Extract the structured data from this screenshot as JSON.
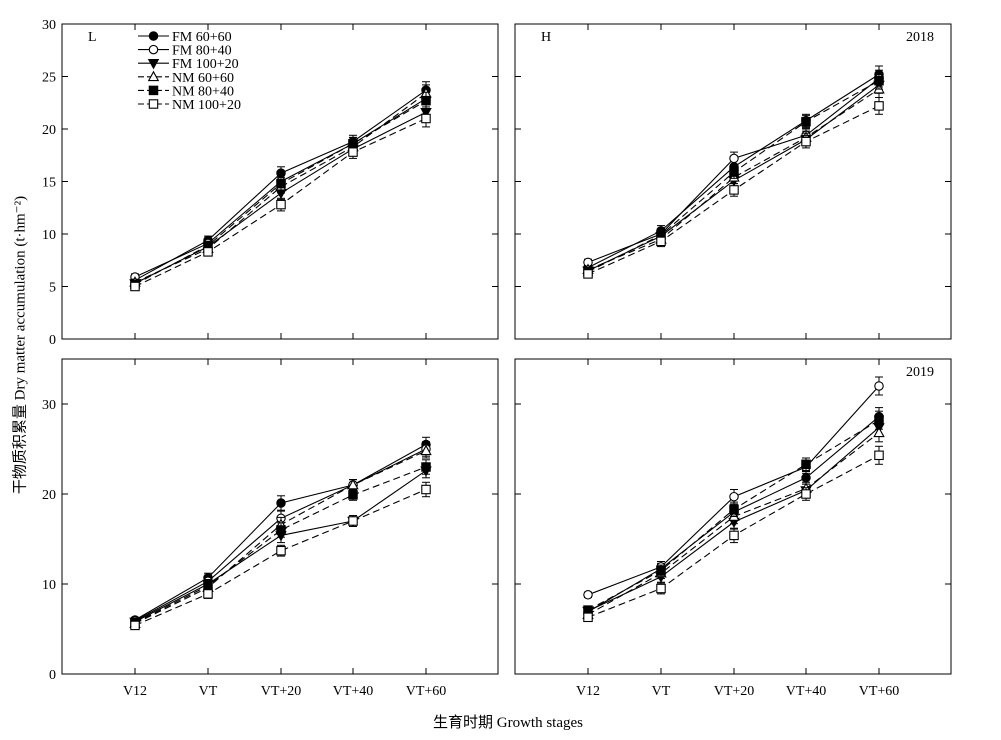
{
  "axis_titles": {
    "y": "干物质积累量 Dry matter accumulation (t·hm⁻²)",
    "x": "生育时期 Growth stages"
  },
  "chart_data": [
    {
      "type": "line",
      "panel_label": "L",
      "year_label": "",
      "categories": [
        "V12",
        "VT",
        "VT+20",
        "VT+40",
        "VT+60"
      ],
      "ylim": [
        0,
        30
      ],
      "yticks": [
        0,
        5,
        10,
        15,
        20,
        25,
        30
      ],
      "show_x_ticklabels": false,
      "legend_position": "top-left",
      "series": [
        {
          "name": "FM 60+60",
          "values": [
            5.6,
            9.4,
            15.8,
            18.8,
            23.7
          ],
          "error": [
            0.3,
            0.4,
            0.6,
            0.6,
            0.8
          ],
          "marker": "circle-filled",
          "dash": "solid"
        },
        {
          "name": "FM 80+40",
          "values": [
            5.9,
            9.1,
            15.0,
            18.6,
            22.9
          ],
          "error": [
            0.3,
            0.4,
            0.6,
            0.6,
            0.8
          ],
          "marker": "circle-open",
          "dash": "solid"
        },
        {
          "name": "FM 100+20",
          "values": [
            5.3,
            8.8,
            13.9,
            18.1,
            21.6
          ],
          "error": [
            0.3,
            0.4,
            0.6,
            0.6,
            0.8
          ],
          "marker": "triangle-down-filled",
          "dash": "solid"
        },
        {
          "name": "NM 60+60",
          "values": [
            5.4,
            8.6,
            14.5,
            18.3,
            23.4
          ],
          "error": [
            0.3,
            0.4,
            0.6,
            0.6,
            0.8
          ],
          "marker": "triangle-up-open",
          "dash": "dashed"
        },
        {
          "name": "NM 80+40",
          "values": [
            5.2,
            8.9,
            14.8,
            18.6,
            22.7
          ],
          "error": [
            0.3,
            0.4,
            0.6,
            0.6,
            0.8
          ],
          "marker": "square-filled",
          "dash": "dashed"
        },
        {
          "name": "NM 100+20",
          "values": [
            5.0,
            8.3,
            12.8,
            17.8,
            21.0
          ],
          "error": [
            0.3,
            0.4,
            0.6,
            0.6,
            0.8
          ],
          "marker": "square-open",
          "dash": "dashed"
        }
      ]
    },
    {
      "type": "line",
      "panel_label": "H",
      "year_label": "2018",
      "categories": [
        "V12",
        "VT",
        "VT+20",
        "VT+40",
        "VT+60"
      ],
      "ylim": [
        0,
        30
      ],
      "yticks": [
        0,
        5,
        10,
        15,
        20,
        25,
        30
      ],
      "show_x_ticklabels": false,
      "legend_position": "none",
      "series": [
        {
          "name": "FM 60+60",
          "values": [
            6.8,
            10.3,
            16.4,
            20.8,
            25.2
          ],
          "error": [
            0.3,
            0.5,
            0.6,
            0.6,
            0.8
          ],
          "marker": "circle-filled",
          "dash": "solid"
        },
        {
          "name": "FM 80+40",
          "values": [
            7.3,
            10.0,
            17.2,
            19.4,
            24.8
          ],
          "error": [
            0.3,
            0.5,
            0.6,
            0.6,
            0.8
          ],
          "marker": "circle-open",
          "dash": "solid"
        },
        {
          "name": "FM 100+20",
          "values": [
            6.5,
            9.8,
            15.1,
            19.0,
            24.2
          ],
          "error": [
            0.3,
            0.5,
            0.6,
            0.6,
            0.8
          ],
          "marker": "triangle-down-filled",
          "dash": "solid"
        },
        {
          "name": "NM 60+60",
          "values": [
            6.6,
            9.5,
            15.4,
            19.2,
            23.8
          ],
          "error": [
            0.3,
            0.5,
            0.6,
            0.6,
            0.8
          ],
          "marker": "triangle-up-open",
          "dash": "dashed"
        },
        {
          "name": "NM 80+40",
          "values": [
            6.4,
            9.9,
            15.9,
            20.7,
            24.6
          ],
          "error": [
            0.3,
            0.5,
            0.6,
            0.6,
            0.8
          ],
          "marker": "square-filled",
          "dash": "dashed"
        },
        {
          "name": "NM 100+20",
          "values": [
            6.2,
            9.3,
            14.2,
            18.8,
            22.2
          ],
          "error": [
            0.3,
            0.5,
            0.6,
            0.6,
            0.8
          ],
          "marker": "square-open",
          "dash": "dashed"
        }
      ]
    },
    {
      "type": "line",
      "panel_label": "",
      "year_label": "",
      "categories": [
        "V12",
        "VT",
        "VT+20",
        "VT+40",
        "VT+60"
      ],
      "ylim": [
        0,
        35
      ],
      "yticks": [
        0,
        10,
        20,
        30
      ],
      "show_x_ticklabels": true,
      "legend_position": "none",
      "series": [
        {
          "name": "FM 60+60",
          "values": [
            6.0,
            10.7,
            19.0,
            21.0,
            25.5
          ],
          "error": [
            0.3,
            0.5,
            0.8,
            0.6,
            0.8
          ],
          "marker": "circle-filled",
          "dash": "solid"
        },
        {
          "name": "FM 80+40",
          "values": [
            5.9,
            10.3,
            17.3,
            21.0,
            25.0
          ],
          "error": [
            0.3,
            0.5,
            0.8,
            0.6,
            0.8
          ],
          "marker": "circle-open",
          "dash": "solid"
        },
        {
          "name": "FM 100+20",
          "values": [
            5.8,
            10.0,
            15.4,
            17.0,
            22.6
          ],
          "error": [
            0.3,
            0.5,
            0.8,
            0.6,
            0.8
          ],
          "marker": "triangle-down-filled",
          "dash": "solid"
        },
        {
          "name": "NM 60+60",
          "values": [
            5.6,
            9.6,
            16.6,
            21.0,
            24.8
          ],
          "error": [
            0.3,
            0.5,
            0.8,
            0.6,
            0.8
          ],
          "marker": "triangle-up-open",
          "dash": "dashed"
        },
        {
          "name": "NM 80+40",
          "values": [
            5.7,
            9.8,
            16.0,
            19.9,
            23.0
          ],
          "error": [
            0.3,
            0.5,
            0.8,
            0.6,
            0.8
          ],
          "marker": "square-filled",
          "dash": "dashed"
        },
        {
          "name": "NM 100+20",
          "values": [
            5.4,
            8.9,
            13.7,
            17.0,
            20.5
          ],
          "error": [
            0.3,
            0.5,
            0.6,
            0.6,
            0.8
          ],
          "marker": "square-open",
          "dash": "dashed"
        }
      ]
    },
    {
      "type": "line",
      "panel_label": "",
      "year_label": "2019",
      "categories": [
        "V12",
        "VT",
        "VT+20",
        "VT+40",
        "VT+60"
      ],
      "ylim": [
        0,
        35
      ],
      "yticks": [
        0,
        10,
        20,
        30
      ],
      "show_x_ticklabels": true,
      "legend_position": "none",
      "series": [
        {
          "name": "FM 60+60",
          "values": [
            6.9,
            11.7,
            18.0,
            21.8,
            28.6
          ],
          "error": [
            0.3,
            0.6,
            0.8,
            0.7,
            1.0
          ],
          "marker": "circle-filled",
          "dash": "solid"
        },
        {
          "name": "FM 80+40",
          "values": [
            8.8,
            11.9,
            19.7,
            23.0,
            32.0
          ],
          "error": [
            0.3,
            0.6,
            0.8,
            0.7,
            1.0
          ],
          "marker": "circle-open",
          "dash": "solid"
        },
        {
          "name": "FM 100+20",
          "values": [
            7.0,
            10.8,
            16.9,
            20.4,
            27.4
          ],
          "error": [
            0.3,
            0.6,
            0.8,
            0.7,
            1.0
          ],
          "marker": "triangle-down-filled",
          "dash": "solid"
        },
        {
          "name": "NM 60+60",
          "values": [
            6.6,
            11.2,
            17.5,
            20.6,
            26.8
          ],
          "error": [
            0.3,
            0.6,
            0.8,
            0.7,
            1.0
          ],
          "marker": "triangle-up-open",
          "dash": "dashed"
        },
        {
          "name": "NM 80+40",
          "values": [
            7.1,
            11.5,
            18.3,
            23.3,
            28.2
          ],
          "error": [
            0.3,
            0.6,
            0.8,
            0.7,
            1.0
          ],
          "marker": "square-filled",
          "dash": "dashed"
        },
        {
          "name": "NM 100+20",
          "values": [
            6.3,
            9.5,
            15.4,
            20.0,
            24.3
          ],
          "error": [
            0.3,
            0.6,
            0.8,
            0.7,
            1.0
          ],
          "marker": "square-open",
          "dash": "dashed"
        }
      ]
    }
  ]
}
